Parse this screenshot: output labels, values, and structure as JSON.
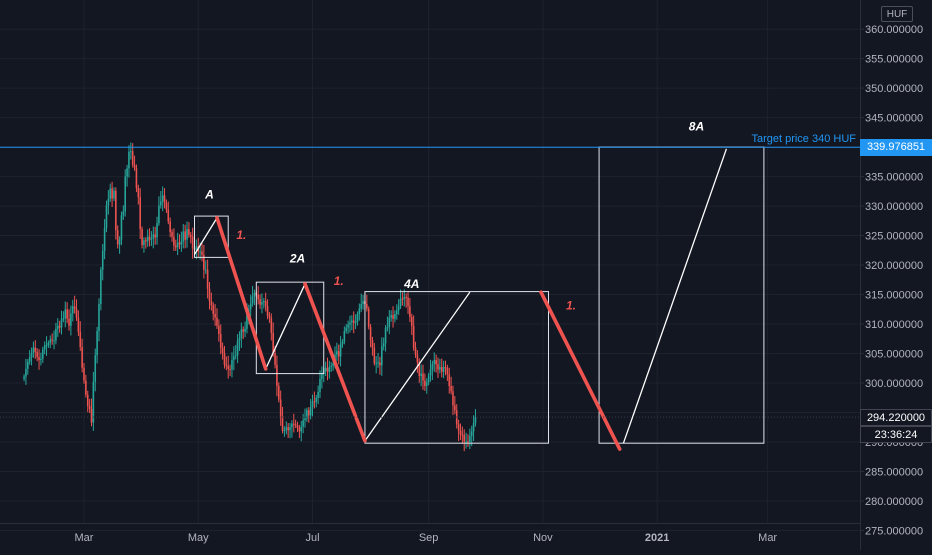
{
  "chart_data": {
    "type": "candlestick",
    "currency": "HUF",
    "y_axis": {
      "min": 273,
      "max": 362,
      "ticks": [
        275,
        280,
        285,
        290,
        295,
        300,
        305,
        310,
        315,
        320,
        325,
        330,
        335,
        340,
        345,
        350,
        355,
        360
      ],
      "tick_labels": [
        "275.000000",
        "280.000000",
        "285.000000",
        "290.000000",
        "",
        "300.000000",
        "305.000000",
        "310.000000",
        "315.000000",
        "320.000000",
        "325.000000",
        "330.000000",
        "335.000000",
        "",
        "345.000000",
        "350.000000",
        "355.000000",
        "360.000000"
      ]
    },
    "x_axis": {
      "labels": [
        "Mar",
        "May",
        "Jul",
        "Sep",
        "Nov",
        "2021",
        "Mar"
      ],
      "label_dates": [
        "2020-03-01",
        "2020-05-01",
        "2020-07-01",
        "2020-09-01",
        "2020-11-01",
        "2021-01-01",
        "2021-03-01"
      ]
    },
    "last_price": {
      "value": 294.22,
      "label": "294.220000",
      "countdown": "23:36:24"
    },
    "target_line": {
      "value": 339.976851,
      "label": "339.976851",
      "text": "Target price 340 HUF"
    },
    "annotations": [
      {
        "text": "A",
        "date": "2020-05-07",
        "price": 331.3
      },
      {
        "text": "2A",
        "date": "2020-06-23",
        "price": 320.4
      },
      {
        "text": "4A",
        "date": "2020-08-23",
        "price": 316.1
      },
      {
        "text": "8A",
        "date": "2021-01-22",
        "price": 342.8
      },
      {
        "text": "1.",
        "date": "2020-05-24",
        "price": 324.4,
        "color": "#ef5350"
      },
      {
        "text": "1.",
        "date": "2020-07-15",
        "price": 316.6,
        "color": "#ef5350"
      },
      {
        "text": "1.",
        "date": "2020-11-16",
        "price": 312.5,
        "color": "#ef5350"
      }
    ],
    "boxes": [
      {
        "start": "2020-04-29",
        "end": "2020-05-17",
        "high": 328.3,
        "low": 321.3
      },
      {
        "start": "2020-06-01",
        "end": "2020-07-07",
        "high": 317.1,
        "low": 301.6
      },
      {
        "start": "2020-07-29",
        "end": "2020-11-04",
        "high": 315.5,
        "low": 289.8
      },
      {
        "start": "2020-12-01",
        "end": "2021-02-27",
        "high": 340.0,
        "low": 289.8
      }
    ],
    "white_trendlines": [
      {
        "x1": "2020-04-29",
        "y1": 321.8,
        "x2": "2020-05-11",
        "y2": 328.0
      },
      {
        "x1": "2020-06-06",
        "y1": 302.4,
        "x2": "2020-06-27",
        "y2": 316.8
      },
      {
        "x1": "2020-07-29",
        "y1": 290.2,
        "x2": "2020-09-23",
        "y2": 315.4
      },
      {
        "x1": "2020-12-14",
        "y1": 289.8,
        "x2": "2021-02-07",
        "y2": 339.7
      }
    ],
    "red_trendlines": [
      {
        "x1": "2020-05-11",
        "y1": 328.0,
        "x2": "2020-06-06",
        "y2": 302.4
      },
      {
        "x1": "2020-06-27",
        "y1": 316.8,
        "x2": "2020-07-29",
        "y2": 290.2
      },
      {
        "x1": "2020-10-31",
        "y1": 315.4,
        "x2": "2020-12-12",
        "y2": 288.8
      }
    ],
    "candles": {
      "start_date": "2020-01-29",
      "interval_days": 1,
      "close": [
        301.1,
        302.4,
        303.6,
        304.4,
        305.1,
        306.0,
        305.3,
        304.4,
        303.9,
        304.1,
        305.7,
        306.4,
        306.4,
        306.8,
        307.4,
        307.2,
        307.2,
        309.2,
        309.7,
        309.4,
        310.8,
        311.0,
        312.5,
        310.9,
        309.7,
        311.8,
        313.0,
        312.6,
        311.1,
        308.7,
        306.1,
        302.6,
        300.4,
        298.0,
        296.1,
        295.6,
        293.3,
        300.2,
        304.7,
        308.8,
        313.4,
        319.2,
        322.4,
        326.3,
        330.1,
        331.2,
        333.0,
        331.3,
        332.6,
        325.9,
        323.5,
        324.3,
        328.4,
        329.1,
        335.0,
        336.4,
        339.2,
        339.3,
        337.0,
        336.4,
        333.1,
        331.5,
        326.1,
        323.4,
        324.2,
        324.0,
        324.8,
        324.3,
        324.5,
        325.2,
        324.7,
        327.1,
        330.1,
        330.8,
        331.8,
        330.5,
        329.4,
        327.4,
        325.6,
        324.8,
        323.3,
        323.0,
        323.8,
        323.5,
        324.0,
        325.7,
        324.3,
        326.1,
        325.1,
        324.8,
        322.8,
        322.6,
        323.2,
        322.3,
        322.3,
        321.7,
        319.2,
        319.2,
        316.0,
        313.9,
        313.2,
        311.7,
        311.1,
        309.7,
        308.3,
        306.0,
        305.1,
        303.1,
        302.9,
        302.4,
        302.3,
        303.9,
        304.5,
        304.7,
        307.2,
        307.6,
        309.1,
        308.7,
        309.2,
        311.7,
        312.5,
        313.5,
        314.7,
        315.3,
        315.0,
        314.2,
        313.3,
        313.7,
        313.9,
        313.0,
        311.4,
        311.1,
        308.5,
        305.1,
        303.1,
        299.5,
        297.2,
        294.4,
        291.9,
        292.0,
        292.5,
        292.0,
        292.5,
        293.1,
        293.0,
        292.8,
        292.4,
        291.8,
        292.6,
        293.7,
        294.0,
        295.4,
        294.5,
        295.9,
        296.9,
        296.8,
        297.5,
        298.5,
        300.7,
        301.5,
        302.0,
        302.6,
        301.9,
        302.7,
        302.9,
        303.3,
        304.8,
        305.4,
        304.5,
        306.6,
        307.0,
        308.8,
        309.4,
        309.9,
        310.3,
        310.6,
        310.2,
        310.4,
        311.7,
        312.6,
        313.4,
        313.9,
        313.4,
        312.6,
        309.5,
        307.3,
        306.0,
        303.4,
        303.4,
        303.5,
        303.0,
        306.2,
        306.7,
        309.3,
        309.5,
        311.1,
        311.5,
        310.9,
        311.7,
        312.3,
        313.0,
        314.3,
        314.2,
        314.6,
        314.5,
        313.0,
        311.2,
        309.7,
        306.0,
        304.8,
        303.5,
        301.2,
        301.6,
        300.4,
        299.5,
        300.1,
        301.3,
        302.3,
        303.2,
        303.9,
        303.2,
        302.3,
        302.7,
        301.9,
        302.7,
        302.6,
        301.5,
        299.5,
        298.6,
        296.2,
        295.4,
        293.0,
        291.9,
        291.3,
        291.2,
        290.1,
        290.1,
        290.0,
        291.0,
        291.8,
        293.2,
        294.2
      ]
    }
  }
}
